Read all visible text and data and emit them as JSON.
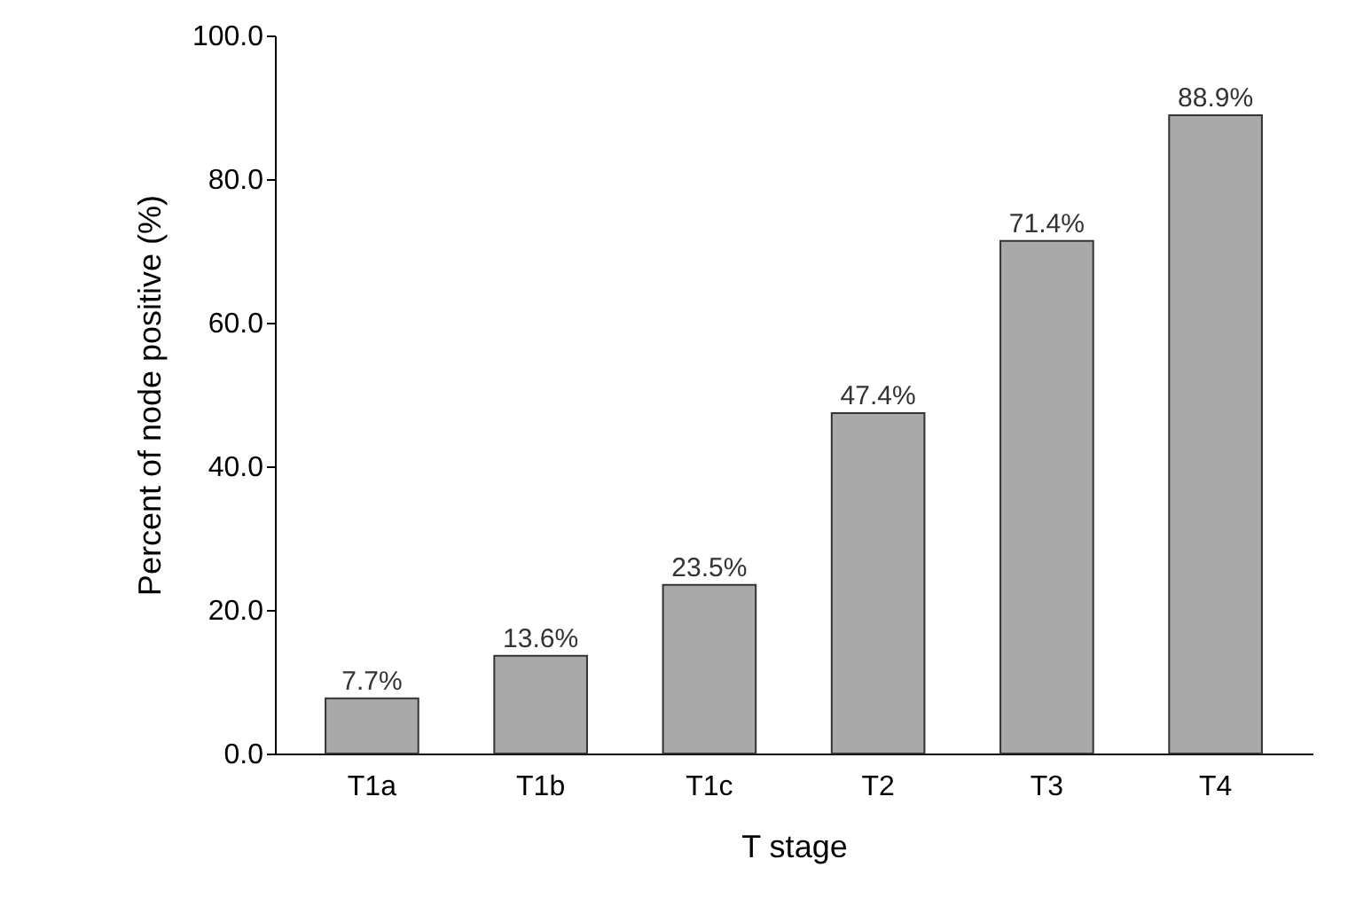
{
  "chart_data": {
    "type": "bar",
    "xlabel": "T stage",
    "ylabel": "Percent of node positive (%)",
    "categories": [
      "T1a",
      "T1b",
      "T1c",
      "T2",
      "T3",
      "T4"
    ],
    "values": [
      7.7,
      13.6,
      23.5,
      47.4,
      71.4,
      88.9
    ],
    "value_labels": [
      "7.7%",
      "13.6%",
      "23.5%",
      "47.4%",
      "71.4%",
      "88.9%"
    ],
    "color": "#a9a9a9",
    "ylim": [
      0,
      100
    ],
    "yticks": [
      {
        "value": 0,
        "label": "0.0"
      },
      {
        "value": 20,
        "label": "20.0"
      },
      {
        "value": 40,
        "label": "40.0"
      },
      {
        "value": 60,
        "label": "60.0"
      },
      {
        "value": 80,
        "label": "80.0"
      },
      {
        "value": 100,
        "label": "100.0"
      }
    ],
    "grid": false
  }
}
